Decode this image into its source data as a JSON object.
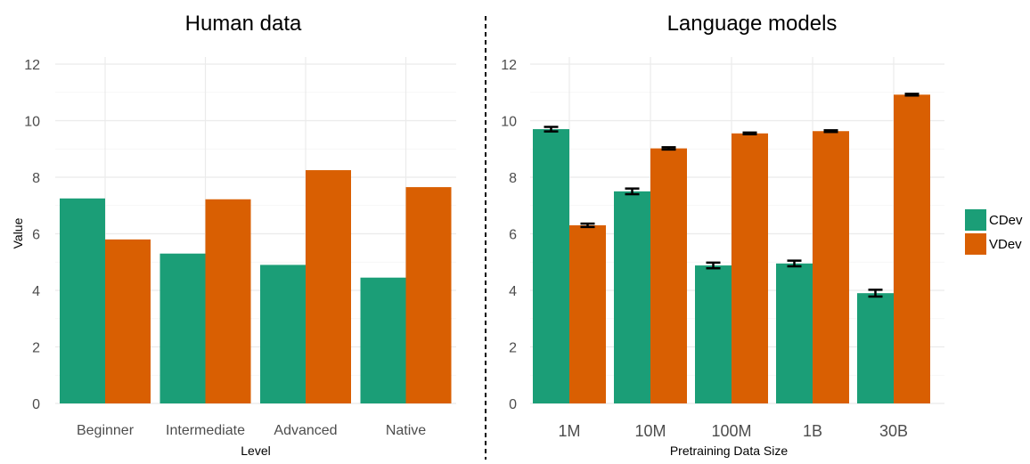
{
  "colors": {
    "CDev": "#1b9e77",
    "VDev": "#d95f02",
    "divider": "#000000",
    "grid": "#ebebeb"
  },
  "legend": {
    "position": "right",
    "entries": [
      "CDev",
      "VDev"
    ]
  },
  "y_axis_label": "Value",
  "chart_data": [
    {
      "type": "bar",
      "title": "Human data",
      "xlabel": "Level",
      "ylabel": "Value",
      "ylim": [
        0,
        12.5
      ],
      "yticks": [
        0,
        2,
        4,
        6,
        8,
        10,
        12
      ],
      "categories": [
        "Beginner",
        "Intermediate",
        "Advanced",
        "Native"
      ],
      "series": [
        {
          "name": "CDev",
          "values": [
            7.25,
            5.3,
            4.9,
            4.45
          ]
        },
        {
          "name": "VDev",
          "values": [
            5.8,
            7.22,
            8.25,
            7.65
          ]
        }
      ],
      "grid": true
    },
    {
      "type": "bar",
      "title": "Language models",
      "xlabel": "Pretraining Data Size",
      "ylabel": "",
      "ylim": [
        0,
        12.5
      ],
      "yticks": [
        0,
        2,
        4,
        6,
        8,
        10,
        12
      ],
      "categories": [
        "1M",
        "10M",
        "100M",
        "1B",
        "30B"
      ],
      "series": [
        {
          "name": "CDev",
          "values": [
            9.7,
            7.5,
            4.88,
            4.95,
            3.9
          ],
          "errors": [
            0.08,
            0.1,
            0.1,
            0.1,
            0.12
          ]
        },
        {
          "name": "VDev",
          "values": [
            6.3,
            9.02,
            9.55,
            9.63,
            10.92
          ],
          "errors": [
            0.06,
            0.04,
            0.03,
            0.03,
            0.03
          ]
        }
      ],
      "grid": true
    }
  ]
}
